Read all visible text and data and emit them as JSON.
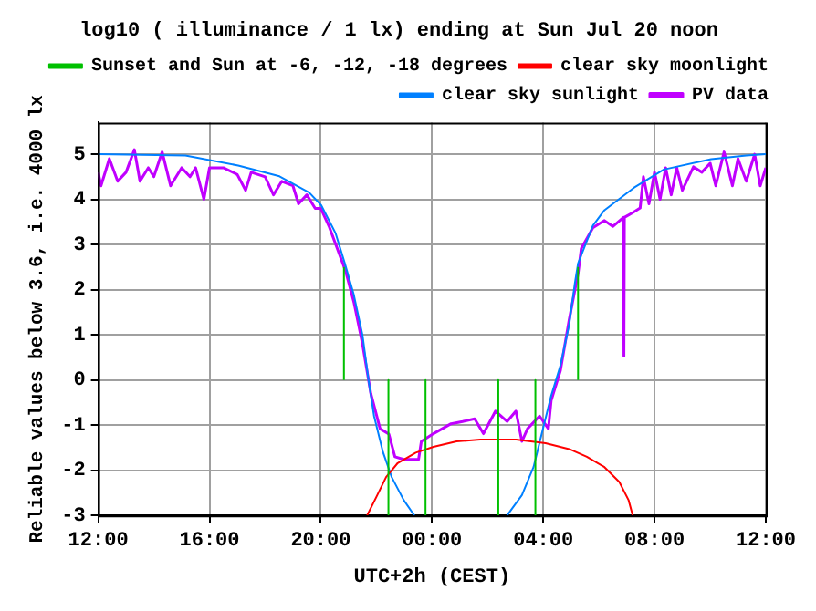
{
  "chart_data": {
    "type": "line",
    "title": "log10 ( illuminance / 1 lx) ending at Sun Jul 20 noon",
    "xlabel": "UTC+2h (CEST)",
    "ylabel": "Reliable values below 3.6, i.e. 4000 lx",
    "xlim": [
      "--07-19T12:00",
      "--07-20T12:00"
    ],
    "xticks": [
      {
        "value": "--07-19T12:00",
        "label": "12:00"
      },
      {
        "value": "--07-19T16:00",
        "label": "16:00"
      },
      {
        "value": "--07-19T20:00",
        "label": "20:00"
      },
      {
        "value": "--07-20T00:00",
        "label": "00:00"
      },
      {
        "value": "--07-20T04:00",
        "label": "04:00"
      },
      {
        "value": "--07-20T08:00",
        "label": "08:00"
      },
      {
        "value": "--07-20T12:00",
        "label": "12:00"
      }
    ],
    "ylim": [
      -3,
      5.7
    ],
    "yticks": [
      -3,
      -2,
      -1,
      0,
      1,
      2,
      3,
      4,
      5
    ],
    "grid": true,
    "legend": "top right",
    "marker": "none",
    "line_style": "solid",
    "series": [
      {
        "name": "Sunset and Sun at -6, -12, -18 degrees",
        "color": "#00c000",
        "x": [
          "--07-19T20:50",
          "--07-19T20:50",
          null,
          "--07-19T22:26",
          "--07-19T22:26",
          null,
          "--07-19T23:46",
          "--07-19T23:46",
          null,
          "--07-20T02:23",
          "--07-20T02:23",
          null,
          "--07-20T03:43",
          "--07-20T03:43",
          null,
          "--07-20T05:15",
          "--07-20T05:15"
        ],
        "values": [
          0,
          2.5,
          null,
          0,
          -3,
          null,
          0,
          -3,
          null,
          0,
          -3,
          null,
          0,
          -3,
          null,
          0,
          2.5
        ]
      },
      {
        "name": "clear sky moonlight",
        "color": "#ff0000",
        "x": [
          "--07-19T21:40",
          "--07-19T22:02",
          "--07-19T22:21",
          "--07-19T22:46",
          "--07-19T23:25",
          "--07-20T00:03",
          "--07-20T00:53",
          "--07-20T01:44",
          "--07-20T03:01",
          "--07-20T04:05",
          "--07-20T04:56",
          "--07-20T05:34",
          "--07-20T06:12",
          "--07-20T06:44",
          "--07-20T07:04",
          "--07-20T07:13"
        ],
        "values": [
          -3,
          -2.55,
          -2.15,
          -1.84,
          -1.61,
          -1.48,
          -1.36,
          -1.32,
          -1.32,
          -1.4,
          -1.53,
          -1.7,
          -1.93,
          -2.26,
          -2.66,
          -3
        ]
      },
      {
        "name": "clear sky sunlight",
        "color": "#0080ff",
        "x": [
          "--07-19T12:00",
          "--07-19T15:08",
          "--07-19T17:02",
          "--07-19T18:31",
          "--07-19T19:35",
          "--07-19T20:01",
          "--07-19T20:32",
          "--07-19T20:52",
          "--07-19T21:11",
          "--07-19T21:30",
          "--07-19T21:43",
          "--07-19T21:55",
          "--07-19T22:14",
          "--07-19T22:33",
          "--07-19T22:59",
          "--07-19T23:22",
          null,
          "--07-20T02:42",
          "--07-20T03:14",
          "--07-20T03:39",
          "--07-20T03:58",
          "--07-20T04:17",
          "--07-20T04:37",
          "--07-20T04:56",
          "--07-20T05:08",
          "--07-20T05:15",
          "--07-20T05:47",
          "--07-20T06:12",
          "--07-20T07:16",
          "--07-20T08:20",
          "--07-20T10:02",
          "--07-20T11:18",
          "--07-20T12:00"
        ],
        "values": [
          5,
          4.97,
          4.75,
          4.51,
          4.15,
          3.87,
          3.25,
          2.58,
          1.9,
          1,
          0,
          -0.8,
          -1.59,
          -2.15,
          -2.66,
          -3,
          null,
          -3,
          -2.55,
          -1.93,
          -1.14,
          -0.35,
          0.32,
          1.23,
          2.13,
          2.58,
          3.42,
          3.76,
          4.26,
          4.66,
          4.89,
          4.97,
          5
        ]
      },
      {
        "name": "PV data",
        "color": "#c000ff",
        "x": [
          "--07-19T12:00",
          "--07-19T12:06",
          "--07-19T12:24",
          "--07-19T12:42",
          "--07-19T13:00",
          "--07-19T13:18",
          "--07-19T13:30",
          "--07-19T13:48",
          "--07-19T14:00",
          "--07-19T14:18",
          "--07-19T14:36",
          "--07-19T15:00",
          "--07-19T15:18",
          "--07-19T15:30",
          "--07-19T15:48",
          "--07-19T16:00",
          "--07-19T16:30",
          "--07-19T17:00",
          "--07-19T17:18",
          "--07-19T17:30",
          "--07-19T18:00",
          "--07-19T18:18",
          "--07-19T18:36",
          "--07-19T19:00",
          "--07-19T19:12",
          "--07-19T19:30",
          "--07-19T19:48",
          "--07-19T20:00",
          "--07-19T20:18",
          "--07-19T20:36",
          "--07-19T20:54",
          "--07-19T21:12",
          "--07-19T21:30",
          "--07-19T21:48",
          "--07-19T22:08",
          "--07-19T22:27",
          "--07-19T22:40",
          "--07-19T22:59",
          "--07-19T23:31",
          "--07-19T23:37",
          "--07-20T00:03",
          "--07-20T00:41",
          "--07-20T01:06",
          "--07-20T01:32",
          "--07-20T01:51",
          "--07-20T02:17",
          "--07-20T02:42",
          "--07-20T03:01",
          "--07-20T03:14",
          "--07-20T03:26",
          "--07-20T03:52",
          "--07-20T04:11",
          "--07-20T04:17",
          "--07-20T04:37",
          "--07-20T04:56",
          "--07-20T05:15",
          "--07-20T05:22",
          "--07-20T05:47",
          "--07-20T06:12",
          "--07-20T06:30",
          "--07-20T06:53",
          "--07-20T06:54",
          "--07-20T06:55",
          "--07-20T07:12",
          "--07-20T07:29",
          "--07-20T07:36",
          "--07-20T07:48",
          "--07-20T08:00",
          "--07-20T08:12",
          "--07-20T08:24",
          "--07-20T08:36",
          "--07-20T08:48",
          "--07-20T09:00",
          "--07-20T09:24",
          "--07-20T09:42",
          "--07-20T10:00",
          "--07-20T10:12",
          "--07-20T10:30",
          "--07-20T10:48",
          "--07-20T11:00",
          "--07-20T11:18",
          "--07-20T11:36",
          "--07-20T11:48",
          "--07-20T12:00"
        ],
        "values": [
          4.6,
          4.3,
          4.9,
          4.4,
          4.6,
          5.1,
          4.4,
          4.7,
          4.5,
          5.05,
          4.3,
          4.7,
          4.5,
          4.7,
          4,
          4.7,
          4.7,
          4.55,
          4.2,
          4.6,
          4.5,
          4.1,
          4.4,
          4.3,
          3.9,
          4.1,
          3.8,
          3.8,
          3.4,
          2.9,
          2.4,
          1.7,
          0.8,
          -0.3,
          -1.08,
          -1.2,
          -1.7,
          -1.76,
          -1.76,
          -1.36,
          -1.19,
          -0.97,
          -0.92,
          -0.86,
          -1.19,
          -0.69,
          -0.92,
          -0.69,
          -1.36,
          -1.08,
          -0.8,
          -1.08,
          -0.46,
          0.21,
          1.34,
          2.35,
          2.91,
          3.37,
          3.53,
          3.4,
          3.6,
          0.53,
          3.6,
          3.7,
          3.81,
          4.5,
          3.9,
          4.6,
          4,
          4.7,
          4.1,
          4.7,
          4.2,
          4.72,
          4.6,
          4.8,
          4.3,
          5.05,
          4.3,
          4.9,
          4.4,
          5,
          4.3,
          4.7
        ]
      }
    ]
  }
}
